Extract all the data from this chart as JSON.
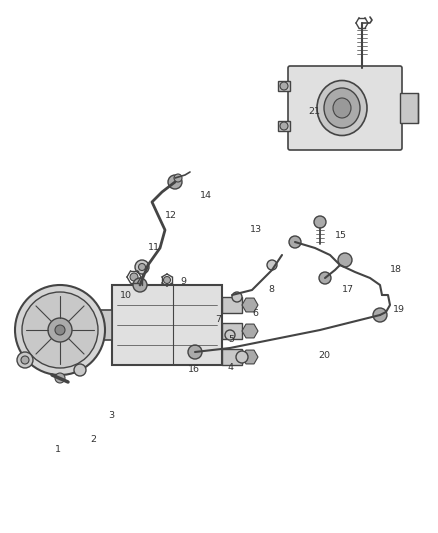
{
  "bg_color": "#ffffff",
  "lc": "#666666",
  "lc_dark": "#444444",
  "fc_light": "#e0e0e0",
  "fc_mid": "#c8c8c8",
  "fc_dark": "#aaaaaa",
  "fig_width": 4.38,
  "fig_height": 5.33,
  "dpi": 100,
  "labels": [
    [
      "1",
      55,
      450,
      "left"
    ],
    [
      "2",
      90,
      440,
      "left"
    ],
    [
      "3",
      108,
      415,
      "left"
    ],
    [
      "4",
      228,
      368,
      "left"
    ],
    [
      "5",
      228,
      340,
      "left"
    ],
    [
      "6",
      252,
      313,
      "left"
    ],
    [
      "7",
      215,
      320,
      "left"
    ],
    [
      "8",
      268,
      290,
      "left"
    ],
    [
      "9",
      180,
      282,
      "left"
    ],
    [
      "10",
      120,
      295,
      "left"
    ],
    [
      "11",
      148,
      248,
      "left"
    ],
    [
      "12",
      165,
      215,
      "left"
    ],
    [
      "13",
      250,
      230,
      "left"
    ],
    [
      "14",
      200,
      195,
      "left"
    ],
    [
      "15",
      335,
      235,
      "left"
    ],
    [
      "16",
      188,
      370,
      "left"
    ],
    [
      "17",
      342,
      290,
      "left"
    ],
    [
      "18",
      390,
      270,
      "left"
    ],
    [
      "19",
      393,
      310,
      "left"
    ],
    [
      "20",
      318,
      355,
      "left"
    ],
    [
      "21",
      308,
      112,
      "left"
    ]
  ]
}
